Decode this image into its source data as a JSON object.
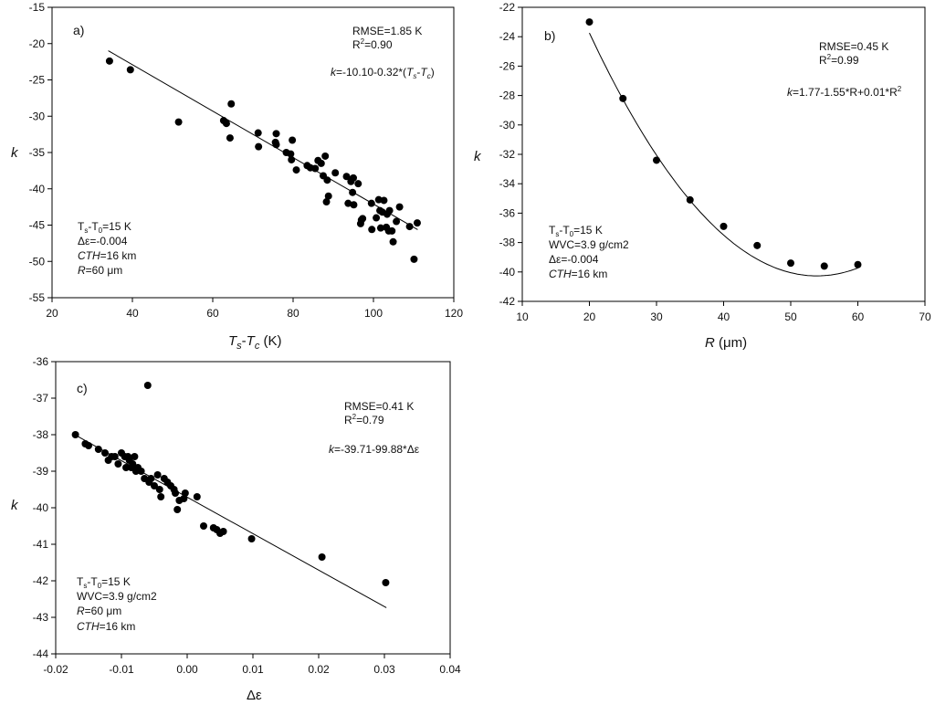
{
  "chart_data": [
    {
      "id": "a",
      "type": "scatter",
      "panel_label": "a)",
      "xlabel": "",
      "xlabel_parts": {
        "t1": "T",
        "s1": "s",
        "dash": "-",
        "t2": "T",
        "s2": "c",
        "unit": " (K)"
      },
      "ylabel": "k",
      "xlim": [
        20,
        120
      ],
      "ylim": [
        -55,
        -15
      ],
      "xticks": [
        "20",
        "40",
        "60",
        "80",
        "100",
        "120"
      ],
      "yticks": [
        "-15",
        "-20",
        "-25",
        "-30",
        "-35",
        "-40",
        "-45",
        "-50",
        "-55"
      ],
      "points": [
        [
          34.3,
          -22.4
        ],
        [
          39.5,
          -23.6
        ],
        [
          51.5,
          -30.8
        ],
        [
          62.7,
          -30.6
        ],
        [
          63.4,
          -31.0
        ],
        [
          64.3,
          -33.0
        ],
        [
          64.6,
          -28.3
        ],
        [
          71.3,
          -32.3
        ],
        [
          71.4,
          -34.2
        ],
        [
          75.8,
          -32.4
        ],
        [
          75.6,
          -33.6
        ],
        [
          75.8,
          -33.9
        ],
        [
          78.3,
          -35.0
        ],
        [
          79.4,
          -35.2
        ],
        [
          79.6,
          -36.0
        ],
        [
          79.8,
          -33.3
        ],
        [
          80.8,
          -37.4
        ],
        [
          83.5,
          -36.8
        ],
        [
          84.3,
          -37.1
        ],
        [
          85.5,
          -37.2
        ],
        [
          86.2,
          -36.1
        ],
        [
          87.0,
          -36.5
        ],
        [
          87.5,
          -38.2
        ],
        [
          88.0,
          -35.5
        ],
        [
          88.3,
          -41.8
        ],
        [
          88.5,
          -38.8
        ],
        [
          88.8,
          -41.0
        ],
        [
          90.5,
          -37.8
        ],
        [
          93.3,
          -38.3
        ],
        [
          93.7,
          -42.0
        ],
        [
          94.4,
          -39.0
        ],
        [
          94.8,
          -40.5
        ],
        [
          95.0,
          -38.5
        ],
        [
          95.1,
          -42.2
        ],
        [
          96.2,
          -39.3
        ],
        [
          96.8,
          -44.8
        ],
        [
          97.0,
          -44.3
        ],
        [
          97.3,
          -44.1
        ],
        [
          99.5,
          -42.0
        ],
        [
          99.6,
          -45.6
        ],
        [
          100.7,
          -44.0
        ],
        [
          101.3,
          -41.5
        ],
        [
          101.6,
          -43.0
        ],
        [
          101.8,
          -45.4
        ],
        [
          102.2,
          -43.2
        ],
        [
          102.6,
          -41.6
        ],
        [
          103.2,
          -45.3
        ],
        [
          103.4,
          -43.5
        ],
        [
          103.8,
          -45.8
        ],
        [
          104.0,
          -43.0
        ],
        [
          104.6,
          -45.8
        ],
        [
          104.9,
          -47.3
        ],
        [
          105.7,
          -44.5
        ],
        [
          106.5,
          -42.5
        ],
        [
          109.0,
          -45.2
        ],
        [
          110.1,
          -49.7
        ],
        [
          110.9,
          -44.7
        ]
      ],
      "fit": {
        "x1": 34,
        "x2": 111,
        "equation_prefix": "k",
        "equation_body": "=-10.10-0.32*(",
        "eq_t1": "T",
        "eq_s1": "s",
        "eq_t2": "T",
        "eq_s2": "c",
        "eq_close": ")"
      },
      "stats": {
        "rmse": "RMSE=1.85 K",
        "r2_prefix": "R",
        "r2_sup": "2",
        "r2_value": "=0.90"
      },
      "conditions": {
        "ts_t0_a": "T",
        "ts_t0_sub1": "s",
        "ts_t0_mid": "-T",
        "ts_t0_sub2": "0",
        "ts_t0_val": "=15 K",
        "delta_eps": "Δε=-0.004",
        "cth_name": "CTH",
        "cth_val": "=16 km",
        "r_name": "R",
        "r_val": "=60 μm"
      }
    },
    {
      "id": "b",
      "type": "scatter",
      "panel_label": "b)",
      "xlabel_parts": {
        "name": "R",
        "unit": " (μm)"
      },
      "ylabel": "k",
      "xlim": [
        10,
        70
      ],
      "ylim": [
        -42,
        -22
      ],
      "xticks": [
        "10",
        "20",
        "30",
        "40",
        "50",
        "60",
        "70"
      ],
      "yticks": [
        "-22",
        "-24",
        "-26",
        "-28",
        "-30",
        "-32",
        "-34",
        "-36",
        "-38",
        "-40",
        "-42"
      ],
      "points": [
        [
          20,
          -23.0
        ],
        [
          25,
          -28.2
        ],
        [
          30,
          -32.4
        ],
        [
          35,
          -35.1
        ],
        [
          40,
          -36.9
        ],
        [
          45,
          -38.2
        ],
        [
          50,
          -39.4
        ],
        [
          55,
          -39.6
        ],
        [
          60,
          -39.5
        ]
      ],
      "fit": {
        "a": 1.77,
        "b": -1.55,
        "c": 0.01,
        "equation_prefix": "k",
        "equation_body": "=1.77-1.55*R+0.01*R",
        "eq_sup": "2"
      },
      "stats": {
        "rmse": "RMSE=0.45 K",
        "r2_prefix": "R",
        "r2_sup": "2",
        "r2_value": "=0.99"
      },
      "conditions": {
        "ts_t0_a": "T",
        "ts_t0_sub1": "s",
        "ts_t0_mid": "-T",
        "ts_t0_sub2": "0",
        "ts_t0_val": "=15 K",
        "wvc": "WVC=3.9 g/cm2",
        "delta_eps": "Δε=-0.004",
        "cth_name": "CTH",
        "cth_val": "=16 km"
      }
    },
    {
      "id": "c",
      "type": "scatter",
      "panel_label": "c)",
      "xlabel": "Δε",
      "ylabel": "k",
      "xlim": [
        -0.02,
        0.04
      ],
      "ylim": [
        -44,
        -36
      ],
      "xticks": [
        "-0.02",
        "-0.01",
        "0.00",
        "0.01",
        "0.02",
        "0.03",
        "0.04"
      ],
      "yticks": [
        "-36",
        "-37",
        "-38",
        "-39",
        "-40",
        "-41",
        "-42",
        "-43",
        "-44"
      ],
      "points": [
        [
          -0.017,
          -38.0
        ],
        [
          -0.0155,
          -38.25
        ],
        [
          -0.015,
          -38.3
        ],
        [
          -0.0135,
          -38.4
        ],
        [
          -0.0125,
          -38.5
        ],
        [
          -0.012,
          -38.7
        ],
        [
          -0.0115,
          -38.6
        ],
        [
          -0.011,
          -38.6
        ],
        [
          -0.0105,
          -38.8
        ],
        [
          -0.01,
          -38.5
        ],
        [
          -0.0095,
          -38.6
        ],
        [
          -0.0093,
          -38.9
        ],
        [
          -0.009,
          -38.6
        ],
        [
          -0.0088,
          -38.7
        ],
        [
          -0.0085,
          -38.9
        ],
        [
          -0.0083,
          -38.8
        ],
        [
          -0.008,
          -38.6
        ],
        [
          -0.0078,
          -39.0
        ],
        [
          -0.0075,
          -38.9
        ],
        [
          -0.007,
          -39.0
        ],
        [
          -0.0065,
          -39.2
        ],
        [
          -0.006,
          -36.65
        ],
        [
          -0.0058,
          -39.3
        ],
        [
          -0.0055,
          -39.2
        ],
        [
          -0.005,
          -39.4
        ],
        [
          -0.0045,
          -39.1
        ],
        [
          -0.0042,
          -39.5
        ],
        [
          -0.004,
          -39.7
        ],
        [
          -0.0035,
          -39.2
        ],
        [
          -0.003,
          -39.3
        ],
        [
          -0.0025,
          -39.4
        ],
        [
          -0.002,
          -39.5
        ],
        [
          -0.0018,
          -39.6
        ],
        [
          -0.0015,
          -40.05
        ],
        [
          -0.0012,
          -39.8
        ],
        [
          -0.0005,
          -39.75
        ],
        [
          -0.0003,
          -39.6
        ],
        [
          0.0015,
          -39.7
        ],
        [
          0.0025,
          -40.5
        ],
        [
          0.004,
          -40.55
        ],
        [
          0.0045,
          -40.6
        ],
        [
          0.005,
          -40.7
        ],
        [
          0.0055,
          -40.65
        ],
        [
          0.0098,
          -40.85
        ],
        [
          0.0205,
          -41.35
        ],
        [
          0.0302,
          -42.05
        ]
      ],
      "fit": {
        "x1": -0.017,
        "x2": 0.0303,
        "equation_prefix": "k",
        "equation_body": "=-39.71-99.88*Δε"
      },
      "stats": {
        "rmse": "RMSE=0.41 K",
        "r2_prefix": "R",
        "r2_sup": "2",
        "r2_value": "=0.79"
      },
      "conditions": {
        "ts_t0_a": "T",
        "ts_t0_sub1": "s",
        "ts_t0_mid": "-T",
        "ts_t0_sub2": "0",
        "ts_t0_val": "=15 K",
        "wvc": "WVC=3.9 g/cm2",
        "r_name": "R",
        "r_val": "=60 μm",
        "cth_name": "CTH",
        "cth_val": "=16 km"
      }
    }
  ]
}
